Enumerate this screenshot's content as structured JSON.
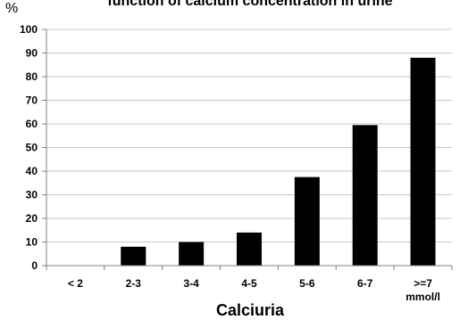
{
  "chart_data": {
    "type": "bar",
    "title": "function of calcium concentration in urine",
    "ylabel": "%",
    "xlabel": "Calciuria",
    "categories": [
      "< 2",
      "2-3",
      "3-4",
      "4-5",
      "5-6",
      "6-7",
      ">=7"
    ],
    "category_sublabels": [
      "",
      "",
      "",
      "",
      "",
      "",
      "mmol/l"
    ],
    "values": [
      0,
      8,
      10,
      14,
      37.5,
      59.5,
      88
    ],
    "ylim": [
      0,
      100
    ],
    "yticks": [
      0,
      10,
      20,
      30,
      40,
      50,
      60,
      70,
      80,
      90,
      100
    ],
    "grid": true,
    "legend": "none",
    "colors": {
      "bar": "#000000",
      "grid": "#c8c8c8",
      "axis": "#808080"
    }
  }
}
